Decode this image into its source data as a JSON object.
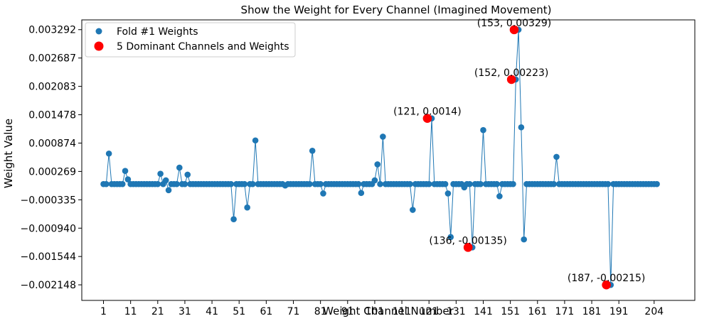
{
  "chart_data": {
    "type": "scatter",
    "title": "Show the Weight for Every Channel (Imagined Movement)",
    "xlabel": "Weight Channel Number",
    "ylabel": "Weight Value",
    "xlim": [
      -7,
      219
    ],
    "ylim": [
      -0.00248,
      0.0035
    ],
    "xticks": [
      1,
      11,
      21,
      31,
      41,
      51,
      61,
      71,
      81,
      91,
      101,
      111,
      121,
      131,
      141,
      151,
      161,
      171,
      181,
      191,
      204
    ],
    "xtick_labels": [
      "1",
      "11",
      "21",
      "31",
      "41",
      "51",
      "61",
      "71",
      "81",
      "91",
      "101",
      "111",
      "121",
      "131",
      "141",
      "151",
      "161",
      "171",
      "181",
      "191",
      "204"
    ],
    "yticks": [
      -0.002148,
      -0.001544,
      -0.00094,
      -0.000335,
      0.000269,
      0.000874,
      0.001478,
      0.002083,
      0.002687,
      0.003292
    ],
    "ytick_labels": [
      "−0.002148",
      "−0.001544",
      "−0.000940",
      "−0.000335",
      "0.000269",
      "0.000874",
      "0.001478",
      "0.002083",
      "0.002687",
      "0.003292"
    ],
    "legend_position": "top-left",
    "colors": {
      "series": "#1f77b4",
      "dominant": "#ff0000"
    },
    "series": [
      {
        "name": "Fold #1 Weights",
        "x_start": 1,
        "values": [
          0,
          0,
          0.00065,
          0,
          0,
          0,
          0,
          0,
          0.00028,
          0.0001,
          0,
          0,
          0,
          0,
          0,
          0,
          0,
          0,
          0,
          0,
          0,
          0.00022,
          0,
          8e-05,
          -0.00013,
          0,
          0,
          0,
          0.00035,
          0,
          0,
          0.0002,
          0,
          0,
          0,
          0,
          0,
          0,
          0,
          0,
          0,
          0,
          0,
          0,
          0,
          0,
          0,
          0,
          -0.00075,
          0,
          0,
          0,
          0,
          -0.0005,
          0,
          0,
          0.00093,
          0,
          0,
          0,
          0,
          0,
          0,
          0,
          0,
          0,
          0,
          -3e-05,
          0,
          0,
          0,
          0,
          0,
          0,
          0,
          0,
          0,
          0.00071,
          0,
          0,
          0,
          -0.0002,
          0,
          0,
          0,
          0,
          0,
          0,
          0,
          0,
          0,
          0,
          0,
          0,
          0,
          -0.00019,
          0,
          0,
          0,
          0,
          8e-05,
          0.00042,
          0,
          0.00101,
          0,
          0,
          0,
          0,
          0,
          0,
          0,
          0,
          0,
          0,
          -0.00055,
          0,
          0,
          0,
          0,
          0,
          0,
          0.0014,
          0,
          0,
          0,
          0,
          0,
          -0.0002,
          -0.00113,
          0,
          0,
          0,
          0,
          -7e-05,
          0,
          0,
          -0.00135,
          0,
          0,
          0,
          0.00115,
          0,
          0,
          0,
          0,
          0,
          -0.00026,
          0,
          0,
          0,
          0,
          0,
          0.00223,
          0.00329,
          0.00121,
          -0.00118,
          0,
          0,
          0,
          0,
          0,
          0,
          0,
          0,
          0,
          0,
          0,
          0.00058,
          0,
          0,
          0,
          0,
          0,
          0,
          0,
          0,
          0,
          0,
          0,
          0,
          0,
          0,
          0,
          0,
          0,
          0,
          0,
          -0.00215,
          0,
          0,
          0,
          0,
          0,
          0,
          0,
          0,
          0,
          0,
          0,
          0,
          0,
          0,
          0,
          0,
          0
        ]
      },
      {
        "name": "5 Dominant Channels and Weights",
        "points": [
          {
            "x": 121,
            "y": 0.0014,
            "label": "(121, 0.0014)"
          },
          {
            "x": 136,
            "y": -0.00135,
            "label": "(136, -0.00135)"
          },
          {
            "x": 152,
            "y": 0.00223,
            "label": "(152, 0.00223)"
          },
          {
            "x": 153,
            "y": 0.00329,
            "label": "(153, 0.00329)"
          },
          {
            "x": 187,
            "y": -0.00215,
            "label": "(187, -0.00215)"
          }
        ]
      }
    ]
  }
}
